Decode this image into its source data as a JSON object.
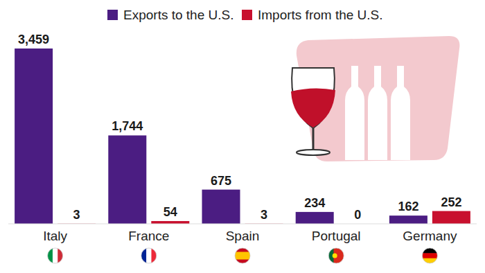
{
  "chart_data": {
    "type": "bar",
    "categories": [
      "Italy",
      "France",
      "Spain",
      "Portugal",
      "Germany"
    ],
    "series": [
      {
        "name": "Exports to the U.S.",
        "color": "#4b1d82",
        "values": [
          3459,
          1744,
          675,
          234,
          162
        ],
        "value_labels": [
          "3,459",
          "1,744",
          "675",
          "234",
          "162"
        ]
      },
      {
        "name": "Imports from the U.S.",
        "color": "#c8102e",
        "values": [
          3,
          54,
          3,
          0,
          252
        ],
        "value_labels": [
          "3",
          "54",
          "3",
          "0",
          "252"
        ]
      }
    ],
    "ylim": [
      0,
      3500
    ],
    "data_labels": true,
    "tick_labels": "x",
    "grid": false,
    "legend": "top"
  }
}
